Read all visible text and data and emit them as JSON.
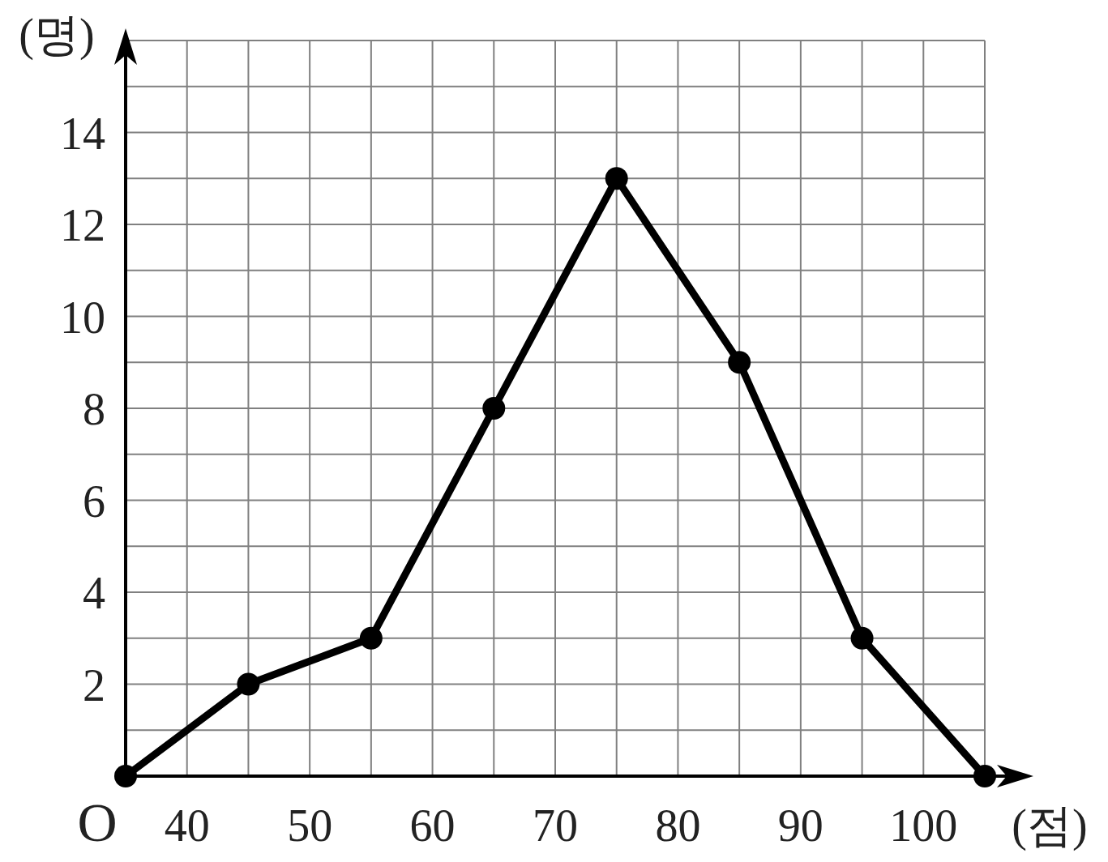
{
  "chart_data": {
    "type": "line",
    "xlabel": "(점)",
    "ylabel": "(명)",
    "x": [
      35,
      45,
      55,
      65,
      75,
      85,
      95,
      105
    ],
    "series": [
      {
        "color": "#000000",
        "values": [
          0,
          2,
          3,
          8,
          13,
          9,
          3,
          0
        ]
      }
    ],
    "xlim": [
      35,
      105
    ],
    "xticks": [
      {
        "value": 35,
        "label": "O"
      },
      40,
      {
        "value": 45,
        "label": null
      },
      50,
      {
        "value": 55,
        "label": null
      },
      60,
      {
        "value": 65,
        "label": null
      },
      70,
      {
        "value": 75,
        "label": null
      },
      80,
      {
        "value": 85,
        "label": null
      },
      90,
      {
        "value": 95,
        "label": null
      },
      100,
      {
        "value": 105,
        "label": null
      }
    ],
    "ylim": [
      0,
      16
    ],
    "yticks": [
      {
        "value": 1,
        "label": null
      },
      2,
      {
        "value": 3,
        "label": null
      },
      4,
      {
        "value": 5,
        "label": null
      },
      6,
      {
        "value": 7,
        "label": null
      },
      8,
      {
        "value": 9,
        "label": null
      },
      10,
      {
        "value": 11,
        "label": null
      },
      12,
      {
        "value": 13,
        "label": null
      },
      14,
      {
        "value": 15,
        "label": null
      },
      {
        "value": 16,
        "label": null
      }
    ],
    "grid": true,
    "marker": "circle",
    "line_style": "solid"
  }
}
